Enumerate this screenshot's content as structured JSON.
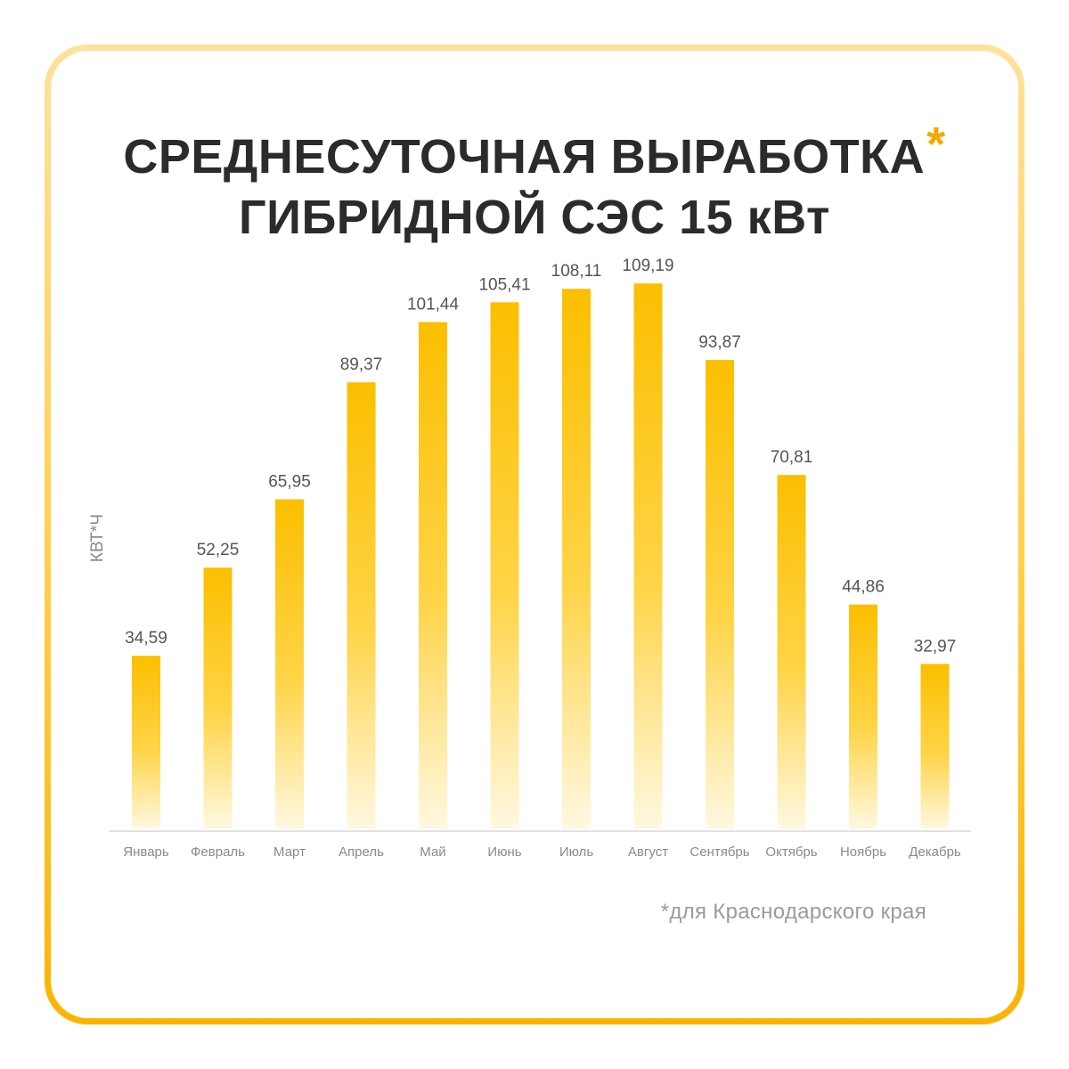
{
  "header": {
    "title_line1": "СРЕДНЕСУТОЧНАЯ ВЫРАБОТКА",
    "title_asterisk": "*",
    "title_line2": "ГИБРИДНОЙ СЭС 15 кВт"
  },
  "footnote": "*для Краснодарского края",
  "colors": {
    "bar_top": "#fbbf00",
    "bar_bottom": "#fff8e0",
    "accent": "#f5a800",
    "frame": "#ffcf4a"
  },
  "chart_data": {
    "type": "bar",
    "ylabel": "КВТ*Ч",
    "ylim": [
      0,
      116
    ],
    "grid": false,
    "categories": [
      "Январь",
      "Февраль",
      "Март",
      "Апрель",
      "Май",
      "Июнь",
      "Июль",
      "Август",
      "Сентябрь",
      "Октябрь",
      "Ноябрь",
      "Декабрь"
    ],
    "values": [
      34.59,
      52.25,
      65.95,
      89.37,
      101.44,
      105.41,
      108.11,
      109.19,
      93.87,
      70.81,
      44.86,
      32.97
    ],
    "value_labels": [
      "34,59",
      "52,25",
      "65,95",
      "89,37",
      "101,44",
      "105,41",
      "108,11",
      "109,19",
      "93,87",
      "70,81",
      "44,86",
      "32,97"
    ]
  }
}
